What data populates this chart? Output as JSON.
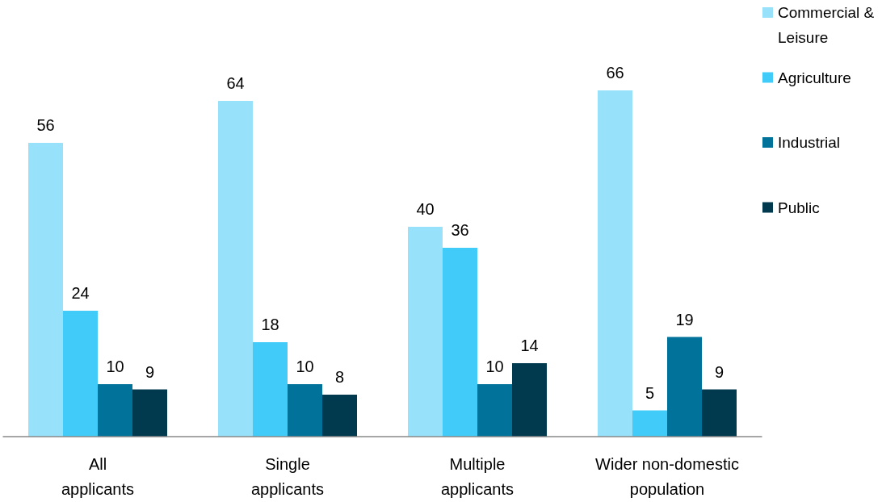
{
  "chart_data": {
    "type": "bar",
    "categories": [
      "All applicants",
      "Single applicants",
      "Multiple applicants",
      "Wider non-domestic population"
    ],
    "series": [
      {
        "name": "Commercial & Leisure",
        "color": "#97e1fb",
        "values": [
          56,
          64,
          40,
          66
        ]
      },
      {
        "name": "Agriculture",
        "color": "#40cbf8",
        "values": [
          24,
          18,
          36,
          5
        ]
      },
      {
        "name": "Industrial",
        "color": "#01729a",
        "values": [
          10,
          10,
          10,
          19
        ]
      },
      {
        "name": "Public",
        "color": "#013a4e",
        "values": [
          9,
          8,
          14,
          9
        ]
      }
    ],
    "data_labels": true,
    "legend": "right"
  }
}
